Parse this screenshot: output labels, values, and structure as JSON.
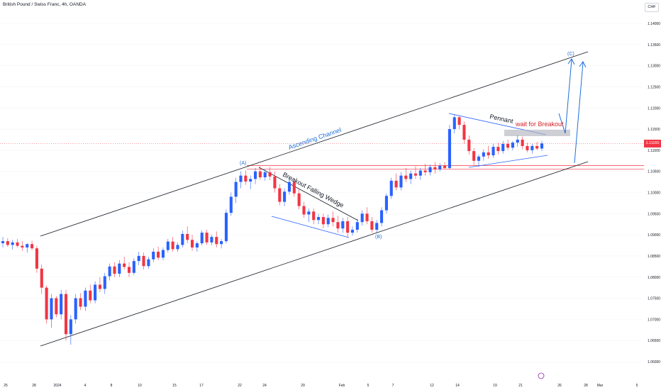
{
  "chart_data": {
    "type": "candlestick",
    "title": "British Pound / Swiss Franc, 4h, OANDA",
    "currency": "CHF",
    "last_price": "1.11160",
    "y_ticks": [
      "1.14000",
      "1.13500",
      "1.13000",
      "1.12500",
      "1.12000",
      "1.11500",
      "1.11000",
      "1.10500",
      "1.10000",
      "1.09500",
      "1.09000",
      "1.08500",
      "1.08000",
      "1.07500",
      "1.07000",
      "1.06500",
      "1.06000"
    ],
    "x_ticks": [
      "25",
      "28",
      "2024",
      "4",
      "8",
      "10",
      "15",
      "17",
      "22",
      "24",
      "29",
      "Feb",
      "5",
      "7",
      "12",
      "14",
      "19",
      "21",
      "26",
      "28",
      "Mar",
      "5"
    ],
    "colors": {
      "up": "#2962ff",
      "down": "#f23645",
      "channel": "#131722",
      "annotation_blue": "#1e6fd9",
      "annotation_red": "#d5222a",
      "hline": "#f23645"
    },
    "annotations": {
      "ascending_channel": "Ascending Channel",
      "breakout_falling_wedge": "Breakout Falling Wedge",
      "pennant": "Pennant",
      "wait_for_breakout": "wait for Breakout",
      "wave_a": "(A)",
      "wave_b": "(B)",
      "wave_c": "(C)"
    },
    "horizontal_levels": [
      1.1064,
      1.1055
    ],
    "candles": [
      [
        1.088,
        1.0895,
        1.087,
        1.0885
      ],
      [
        1.0885,
        1.0892,
        1.0872,
        1.0876
      ],
      [
        1.0876,
        1.0888,
        1.0865,
        1.0882
      ],
      [
        1.0882,
        1.089,
        1.087,
        1.0874
      ],
      [
        1.0874,
        1.0885,
        1.0862,
        1.087
      ],
      [
        1.087,
        1.088,
        1.0858,
        1.0878
      ],
      [
        1.0878,
        1.0886,
        1.0864,
        1.0868
      ],
      [
        1.0868,
        1.0874,
        1.081,
        1.082
      ],
      [
        1.082,
        1.083,
        1.076,
        1.0775
      ],
      [
        1.0775,
        1.078,
        1.069,
        1.07
      ],
      [
        1.07,
        1.076,
        1.068,
        1.075
      ],
      [
        1.075,
        1.0755,
        1.0705,
        1.0712
      ],
      [
        1.0712,
        1.077,
        1.07,
        1.076
      ],
      [
        1.076,
        1.077,
        1.065,
        1.0665
      ],
      [
        1.0665,
        1.071,
        1.064,
        1.07
      ],
      [
        1.07,
        1.076,
        1.069,
        1.075
      ],
      [
        1.075,
        1.0762,
        1.0722,
        1.073
      ],
      [
        1.073,
        1.0775,
        1.072,
        1.0768
      ],
      [
        1.0768,
        1.0782,
        1.0738,
        1.0745
      ],
      [
        1.0745,
        1.079,
        1.0738,
        1.0782
      ],
      [
        1.0782,
        1.08,
        1.0765,
        1.0772
      ],
      [
        1.0772,
        1.081,
        1.076,
        1.0802
      ],
      [
        1.0802,
        1.0832,
        1.0792,
        1.0825
      ],
      [
        1.0825,
        1.0835,
        1.08,
        1.0808
      ],
      [
        1.0808,
        1.084,
        1.08,
        1.0832
      ],
      [
        1.0832,
        1.0848,
        1.0818,
        1.0824
      ],
      [
        1.0824,
        1.0835,
        1.08,
        1.081
      ],
      [
        1.081,
        1.0845,
        1.0805,
        1.0838
      ],
      [
        1.0838,
        1.086,
        1.0828,
        1.085
      ],
      [
        1.085,
        1.0858,
        1.0818,
        1.0826
      ],
      [
        1.0826,
        1.0848,
        1.082,
        1.0842
      ],
      [
        1.0842,
        1.0868,
        1.0835,
        1.086
      ],
      [
        1.086,
        1.0872,
        1.084,
        1.0846
      ],
      [
        1.0846,
        1.087,
        1.084,
        1.0864
      ],
      [
        1.0864,
        1.089,
        1.0858,
        1.0884
      ],
      [
        1.0884,
        1.0895,
        1.086,
        1.0866
      ],
      [
        1.0866,
        1.0882,
        1.086,
        1.0876
      ],
      [
        1.0876,
        1.091,
        1.087,
        1.0902
      ],
      [
        1.0902,
        1.092,
        1.088,
        1.0888
      ],
      [
        1.0888,
        1.09,
        1.0862,
        1.087
      ],
      [
        1.087,
        1.0885,
        1.086,
        1.088
      ],
      [
        1.088,
        1.091,
        1.0875,
        1.0905
      ],
      [
        1.0905,
        1.0912,
        1.0876,
        1.0882
      ],
      [
        1.0882,
        1.09,
        1.0875,
        1.0895
      ],
      [
        1.0895,
        1.0908,
        1.087,
        1.0878
      ],
      [
        1.0878,
        1.089,
        1.0868,
        1.0885
      ],
      [
        1.0885,
        1.096,
        1.088,
        1.0952
      ],
      [
        1.0952,
        1.1,
        1.0945,
        1.099
      ],
      [
        1.099,
        1.1035,
        1.0975,
        1.1025
      ],
      [
        1.1025,
        1.105,
        1.101,
        1.104
      ],
      [
        1.104,
        1.1052,
        1.1018,
        1.1026
      ],
      [
        1.1026,
        1.104,
        1.1008,
        1.1032
      ],
      [
        1.1032,
        1.1058,
        1.102,
        1.105
      ],
      [
        1.105,
        1.1062,
        1.103,
        1.1036
      ],
      [
        1.1036,
        1.1055,
        1.1028,
        1.1048
      ],
      [
        1.1048,
        1.106,
        1.103,
        1.1038
      ],
      [
        1.1038,
        1.105,
        1.1,
        1.101
      ],
      [
        1.101,
        1.102,
        1.097,
        1.0978
      ],
      [
        1.0978,
        1.101,
        1.0968,
        1.1002
      ],
      [
        1.1002,
        1.1035,
        1.0995,
        1.1025
      ],
      [
        1.1025,
        1.1032,
        1.099,
        1.0998
      ],
      [
        1.0998,
        1.101,
        1.096,
        1.0968
      ],
      [
        1.0968,
        1.0978,
        1.094,
        1.0948
      ],
      [
        1.0948,
        1.0962,
        1.093,
        1.0955
      ],
      [
        1.0955,
        1.0962,
        1.0925,
        1.0935
      ],
      [
        1.0935,
        1.095,
        1.0925,
        1.0942
      ],
      [
        1.0942,
        1.095,
        1.0915,
        1.0925
      ],
      [
        1.0925,
        1.0948,
        1.0918,
        1.094
      ],
      [
        1.094,
        1.0955,
        1.092,
        1.093
      ],
      [
        1.093,
        1.0945,
        1.0905,
        1.0915
      ],
      [
        1.0915,
        1.094,
        1.0905,
        1.0932
      ],
      [
        1.0932,
        1.0942,
        1.0895,
        1.0905
      ],
      [
        1.0905,
        1.092,
        1.0898,
        1.0912
      ],
      [
        1.0912,
        1.0938,
        1.0905,
        1.093
      ],
      [
        1.093,
        1.0958,
        1.0922,
        1.095
      ],
      [
        1.095,
        1.0965,
        1.0925,
        1.0932
      ],
      [
        1.0932,
        1.0942,
        1.0905,
        1.0912
      ],
      [
        1.0912,
        1.0935,
        1.0905,
        1.0928
      ],
      [
        1.0928,
        1.0965,
        1.092,
        1.0958
      ],
      [
        1.0958,
        1.0998,
        1.095,
        1.0992
      ],
      [
        1.0992,
        1.1035,
        1.0985,
        1.1028
      ],
      [
        1.1028,
        1.1045,
        1.1005,
        1.1012
      ],
      [
        1.1012,
        1.1048,
        1.1005,
        1.104
      ],
      [
        1.104,
        1.1058,
        1.1025,
        1.1032
      ],
      [
        1.1032,
        1.1052,
        1.102,
        1.1045
      ],
      [
        1.1045,
        1.1062,
        1.1032,
        1.104
      ],
      [
        1.104,
        1.1058,
        1.103,
        1.1052
      ],
      [
        1.1052,
        1.1068,
        1.104,
        1.1048
      ],
      [
        1.1048,
        1.1066,
        1.104,
        1.106
      ],
      [
        1.106,
        1.1072,
        1.1045,
        1.1055
      ],
      [
        1.1055,
        1.107,
        1.105,
        1.1063
      ],
      [
        1.1063,
        1.1072,
        1.1055,
        1.1058
      ],
      [
        1.1058,
        1.116,
        1.1055,
        1.115
      ],
      [
        1.115,
        1.1185,
        1.114,
        1.1178
      ],
      [
        1.1178,
        1.1182,
        1.115,
        1.116
      ],
      [
        1.116,
        1.1168,
        1.1115,
        1.1125
      ],
      [
        1.1125,
        1.1135,
        1.109,
        1.1098
      ],
      [
        1.1098,
        1.1105,
        1.1065,
        1.1075
      ],
      [
        1.1075,
        1.109,
        1.106,
        1.1085
      ],
      [
        1.1085,
        1.1102,
        1.1075,
        1.1095
      ],
      [
        1.1095,
        1.111,
        1.108,
        1.1088
      ],
      [
        1.1088,
        1.1115,
        1.1082,
        1.1108
      ],
      [
        1.1108,
        1.1118,
        1.109,
        1.1098
      ],
      [
        1.1098,
        1.1122,
        1.1092,
        1.1115
      ],
      [
        1.1115,
        1.1125,
        1.11,
        1.1106
      ],
      [
        1.1106,
        1.1122,
        1.11,
        1.1118
      ],
      [
        1.1118,
        1.1135,
        1.1108,
        1.1125
      ],
      [
        1.1125,
        1.1132,
        1.1102,
        1.111
      ],
      [
        1.111,
        1.1118,
        1.1095,
        1.11
      ],
      [
        1.11,
        1.1115,
        1.1092,
        1.111
      ],
      [
        1.111,
        1.112,
        1.11,
        1.1104
      ],
      [
        1.1104,
        1.1122,
        1.1098,
        1.1116
      ]
    ]
  }
}
